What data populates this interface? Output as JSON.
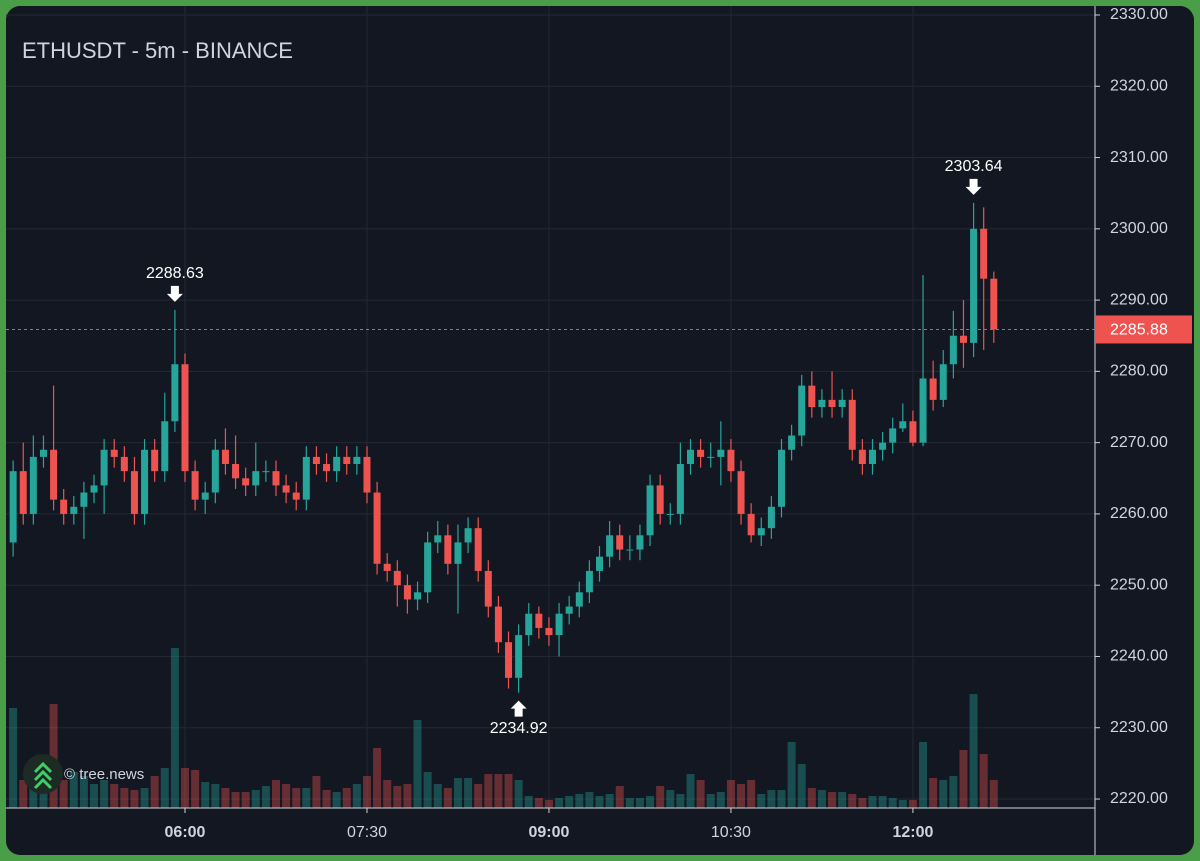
{
  "chart_data": {
    "type": "candlestick",
    "title": "ETHUSDT - 5m - BINANCE",
    "watermark": "© tree.news",
    "x": [
      "04:35",
      "04:40",
      "04:45",
      "04:50",
      "04:55",
      "05:00",
      "05:05",
      "05:10",
      "05:15",
      "05:20",
      "05:25",
      "05:30",
      "05:35",
      "05:40",
      "05:45",
      "05:50",
      "05:55",
      "06:00",
      "06:05",
      "06:10",
      "06:15",
      "06:20",
      "06:25",
      "06:30",
      "06:35",
      "06:40",
      "06:45",
      "06:50",
      "06:55",
      "07:00",
      "07:05",
      "07:10",
      "07:15",
      "07:20",
      "07:25",
      "07:30",
      "07:35",
      "07:40",
      "07:45",
      "07:50",
      "07:55",
      "08:00",
      "08:05",
      "08:10",
      "08:15",
      "08:20",
      "08:25",
      "08:30",
      "08:35",
      "08:40",
      "08:45",
      "08:50",
      "08:55",
      "09:00",
      "09:05",
      "09:10",
      "09:15",
      "09:20",
      "09:25",
      "09:30",
      "09:35",
      "09:40",
      "09:45",
      "09:50",
      "09:55",
      "10:00",
      "10:05",
      "10:10",
      "10:15",
      "10:20",
      "10:25",
      "10:30",
      "10:35",
      "10:40",
      "10:45",
      "10:50",
      "10:55",
      "11:00",
      "11:05",
      "11:10",
      "11:15",
      "11:20",
      "11:25",
      "11:30",
      "11:35",
      "11:40",
      "11:45",
      "11:50",
      "11:55",
      "12:00",
      "12:05",
      "12:10",
      "12:15",
      "12:20",
      "12:25",
      "12:30",
      "12:35",
      "12:40"
    ],
    "open": [
      2256,
      2266,
      2260,
      2268,
      2269,
      2262,
      2260,
      2261,
      2263,
      2264,
      2269,
      2268,
      2266,
      2260,
      2269,
      2266,
      2273,
      2281,
      2266,
      2262,
      2263,
      2269,
      2267,
      2265,
      2264,
      2266,
      2266,
      2264,
      2263,
      2262,
      2268,
      2267,
      2266,
      2268,
      2267,
      2268,
      2263,
      2253,
      2252,
      2250,
      2248,
      2249,
      2256,
      2257,
      2253,
      2256,
      2258,
      2252,
      2247,
      2242,
      2237,
      2243,
      2246,
      2244,
      2243,
      2246,
      2247,
      2249,
      2252,
      2254,
      2257,
      2255,
      2255,
      2257,
      2264,
      2260,
      2260,
      2267,
      2269,
      2268,
      2268,
      2269,
      2266,
      2260,
      2257,
      2258,
      2261,
      2269,
      2271,
      2278,
      2275,
      2276,
      2275,
      2276,
      2269,
      2267,
      2269,
      2270,
      2272,
      2273,
      2270,
      2279,
      2276,
      2281,
      2285,
      2284,
      2300,
      2293
    ],
    "high": [
      2267.5,
      2270,
      2271,
      2271,
      2278,
      2263.5,
      2262.5,
      2264.5,
      2265.5,
      2270.5,
      2270.5,
      2269.5,
      2268,
      2270.5,
      2270.5,
      2277,
      2288.63,
      2282.5,
      2267.5,
      2264.5,
      2270.5,
      2272,
      2271,
      2266.5,
      2270,
      2267.5,
      2267.5,
      2265.5,
      2264.5,
      2269.5,
      2269.5,
      2268.5,
      2269.5,
      2269.5,
      2269.5,
      2269.5,
      2264.5,
      2254.5,
      2253.5,
      2251.5,
      2250.5,
      2257.5,
      2259,
      2258.5,
      2258.5,
      2259.5,
      2259.5,
      2253.5,
      2248.5,
      2243.5,
      2244.5,
      2247.5,
      2247,
      2245.5,
      2247.5,
      2248.5,
      2250.5,
      2253.5,
      2255.5,
      2259,
      2258.5,
      2257,
      2258.5,
      2265.5,
      2265.5,
      2261.5,
      2270,
      2270.5,
      2270.5,
      2270,
      2273,
      2270.5,
      2267.5,
      2261.5,
      2259.5,
      2262.5,
      2270.5,
      2272.5,
      2279.5,
      2280,
      2277.5,
      2280,
      2277.5,
      2277.5,
      2270.5,
      2270.5,
      2271.5,
      2273.5,
      2275.5,
      2274.5,
      2293.5,
      2281.5,
      2283,
      2288.5,
      2290,
      2303.64,
      2303,
      2294
    ],
    "low": [
      2254,
      2258.5,
      2258.5,
      2266.5,
      2260.5,
      2258.5,
      2258.5,
      2256.5,
      2261.5,
      2260,
      2266.5,
      2264.5,
      2258.5,
      2258.5,
      2264.5,
      2264.5,
      2271.5,
      2264.5,
      2260.5,
      2260,
      2261.5,
      2265.5,
      2263.5,
      2262.5,
      2262.5,
      2264.5,
      2262.5,
      2261.5,
      2260.5,
      2260.5,
      2265.5,
      2264.5,
      2264.5,
      2265.5,
      2265.5,
      2261.5,
      2251.5,
      2250.5,
      2247,
      2246,
      2246.5,
      2247.5,
      2254.5,
      2251.5,
      2246,
      2254.5,
      2250.5,
      2245.5,
      2240.5,
      2235.5,
      2234.92,
      2241.5,
      2242.5,
      2241.5,
      2240,
      2244.5,
      2245.5,
      2247.5,
      2250.5,
      2252.5,
      2253.5,
      2253.5,
      2253.5,
      2255.5,
      2258.5,
      2258.5,
      2258.5,
      2265.5,
      2266.5,
      2266.5,
      2264,
      2264.5,
      2258.5,
      2256,
      2255.5,
      2256.5,
      2259.5,
      2267.5,
      2269.5,
      2273.5,
      2273.5,
      2273.5,
      2273.5,
      2267.5,
      2265.5,
      2265.5,
      2267.5,
      2268.5,
      2271.5,
      2269.5,
      2269.5,
      2274.5,
      2275,
      2279,
      2280.5,
      2282,
      2283,
      2284
    ],
    "close": [
      2266,
      2260,
      2268,
      2269,
      2262,
      2260,
      2261,
      2263,
      2264,
      2269,
      2268,
      2266,
      2260,
      2269,
      2266,
      2273,
      2281,
      2266,
      2262,
      2263,
      2269,
      2267,
      2265,
      2264,
      2266,
      2266,
      2264,
      2263,
      2262,
      2268,
      2267,
      2266,
      2268,
      2267,
      2268,
      2263,
      2253,
      2252,
      2250,
      2248,
      2249,
      2256,
      2257,
      2253,
      2256,
      2258,
      2252,
      2247,
      2242,
      2237,
      2243,
      2246,
      2244,
      2243,
      2246,
      2247,
      2249,
      2252,
      2254,
      2257,
      2255,
      2255,
      2257,
      2264,
      2260,
      2260,
      2267,
      2269,
      2268,
      2268,
      2269,
      2266,
      2260,
      2257,
      2258,
      2261,
      2269,
      2271,
      2278,
      2275,
      2276,
      2275,
      2276,
      2269,
      2267,
      2269,
      2270,
      2272,
      2273,
      2270,
      2279,
      2276,
      2281,
      2285,
      2284,
      2300,
      2293,
      2285.88
    ],
    "volume": [
      50,
      14,
      15,
      18,
      52,
      14,
      18,
      16,
      12,
      14,
      12,
      10,
      9,
      10,
      16,
      20,
      80,
      20,
      19,
      13,
      12,
      10,
      8,
      8,
      9,
      11,
      14,
      12,
      10,
      10,
      16,
      9,
      8,
      10,
      12,
      16,
      30,
      14,
      11,
      12,
      44,
      18,
      12,
      10,
      15,
      15,
      12,
      17,
      17,
      17,
      14,
      6,
      5,
      4,
      5,
      6,
      7,
      8,
      6,
      7,
      11,
      5,
      5,
      6,
      11,
      9,
      7,
      17,
      14,
      7,
      8,
      14,
      12,
      14,
      7,
      9,
      9,
      33,
      22,
      10,
      9,
      8,
      8,
      7,
      5,
      6,
      6,
      5,
      4,
      4,
      33,
      15,
      14,
      16,
      29,
      57,
      27,
      14
    ],
    "volume_ylim": [
      0,
      100
    ],
    "up_color": "#26a69a",
    "down_color": "#ef5350",
    "ylim": [
      2218.74,
      2330.98
    ],
    "yticks": [
      {
        "value": 2220,
        "label": "2220.00"
      },
      {
        "value": 2230,
        "label": "2230.00"
      },
      {
        "value": 2240,
        "label": "2240.00"
      },
      {
        "value": 2250,
        "label": "2250.00"
      },
      {
        "value": 2260,
        "label": "2260.00"
      },
      {
        "value": 2270,
        "label": "2270.00"
      },
      {
        "value": 2280,
        "label": "2280.00"
      },
      {
        "value": 2290,
        "label": "2290.00"
      },
      {
        "value": 2300,
        "label": "2300.00"
      },
      {
        "value": 2310,
        "label": "2310.00"
      },
      {
        "value": 2320,
        "label": "2320.00"
      },
      {
        "value": 2330,
        "label": "2330.00"
      }
    ],
    "xticks": [
      "06:00",
      "07:30",
      "09:00",
      "10:30",
      "12:00"
    ],
    "grid": true,
    "last_price": 2285.88,
    "annotations": [
      {
        "x": "05:55",
        "value": 2288.63,
        "position": "above"
      },
      {
        "x": "08:45",
        "value": 2234.92,
        "position": "below"
      },
      {
        "x": "12:30",
        "value": 2303.64,
        "position": "above"
      }
    ]
  }
}
